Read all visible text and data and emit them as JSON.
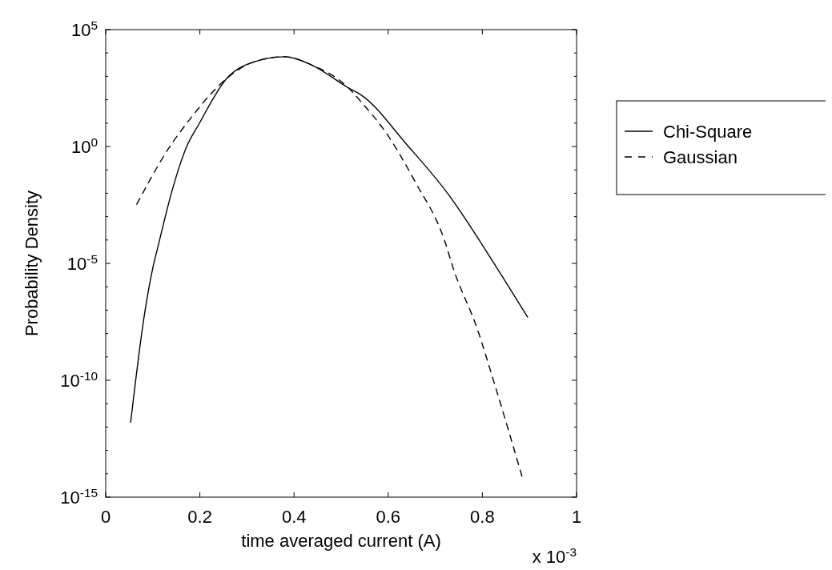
{
  "chart_data": {
    "type": "line",
    "xlabel": "time averaged current (A)",
    "ylabel": "Probability Density",
    "log": "y",
    "legend": "top right",
    "xlim": [
      0,
      1
    ],
    "xticks": [
      0,
      0.2,
      0.4,
      0.6,
      0.8,
      1
    ],
    "ylim": [
      1e-15,
      100000.0
    ],
    "yticks": [
      {
        "value": 1e-15,
        "label": "10$^{-15}$"
      },
      {
        "value": 1e-14,
        "label": null
      },
      {
        "value": 1e-13,
        "label": null
      },
      {
        "value": 1e-12,
        "label": null
      },
      {
        "value": 1e-11,
        "label": null
      },
      {
        "value": 1e-10,
        "label": "10$^{-10}$"
      },
      {
        "value": 1e-09,
        "label": null
      },
      {
        "value": 1e-08,
        "label": null
      },
      {
        "value": 1e-07,
        "label": null
      },
      {
        "value": 1e-06,
        "label": null
      },
      {
        "value": 1e-05,
        "label": "10$^{-5}$"
      },
      {
        "value": 0.0001,
        "label": null
      },
      {
        "value": 0.001,
        "label": null
      },
      {
        "value": 0.01,
        "label": null
      },
      {
        "value": 0.1,
        "label": null
      },
      {
        "value": 1,
        "label": "10$^{0}$"
      },
      {
        "value": 10,
        "label": null
      },
      {
        "value": 100,
        "label": null
      },
      {
        "value": 1000,
        "label": null
      },
      {
        "value": 10000,
        "label": null
      },
      {
        "value": 100000.0,
        "label": "10$^{5}$"
      }
    ],
    "annotations": [
      "x 10$^{-3}$"
    ],
    "series": [
      {
        "name": "Chi-Square",
        "color": "#000000",
        "line_style": "solid",
        "x": [
          0.053,
          0.083,
          0.1,
          0.111,
          0.141,
          0.172,
          0.198,
          0.257,
          0.312,
          0.38,
          0.436,
          0.516,
          0.543,
          0.64,
          0.726,
          0.831,
          0.896
        ],
        "values": [
          1.6e-12,
          8e-08,
          6.3e-06,
          5.2e-05,
          0.013,
          1,
          9.1,
          813,
          3981,
          6918,
          3162,
          316,
          158,
          1.17,
          0.01,
          6.3e-06,
          5e-08
        ]
      },
      {
        "name": "Gaussian",
        "color": "#000000",
        "line_style": "dashed",
        "x": [
          0.066,
          0.133,
          0.184,
          0.227,
          0.257,
          0.312,
          0.38,
          0.436,
          0.516,
          0.543,
          0.595,
          0.658,
          0.72,
          0.738,
          0.789,
          0.828,
          0.884
        ],
        "values": [
          0.0034,
          0.79,
          20,
          214,
          813,
          3981,
          6918,
          3162,
          316,
          79,
          4,
          0.029,
          9.1e-05,
          6.3e-06,
          1.6e-08,
          5e-11,
          7.9e-15
        ]
      }
    ]
  }
}
